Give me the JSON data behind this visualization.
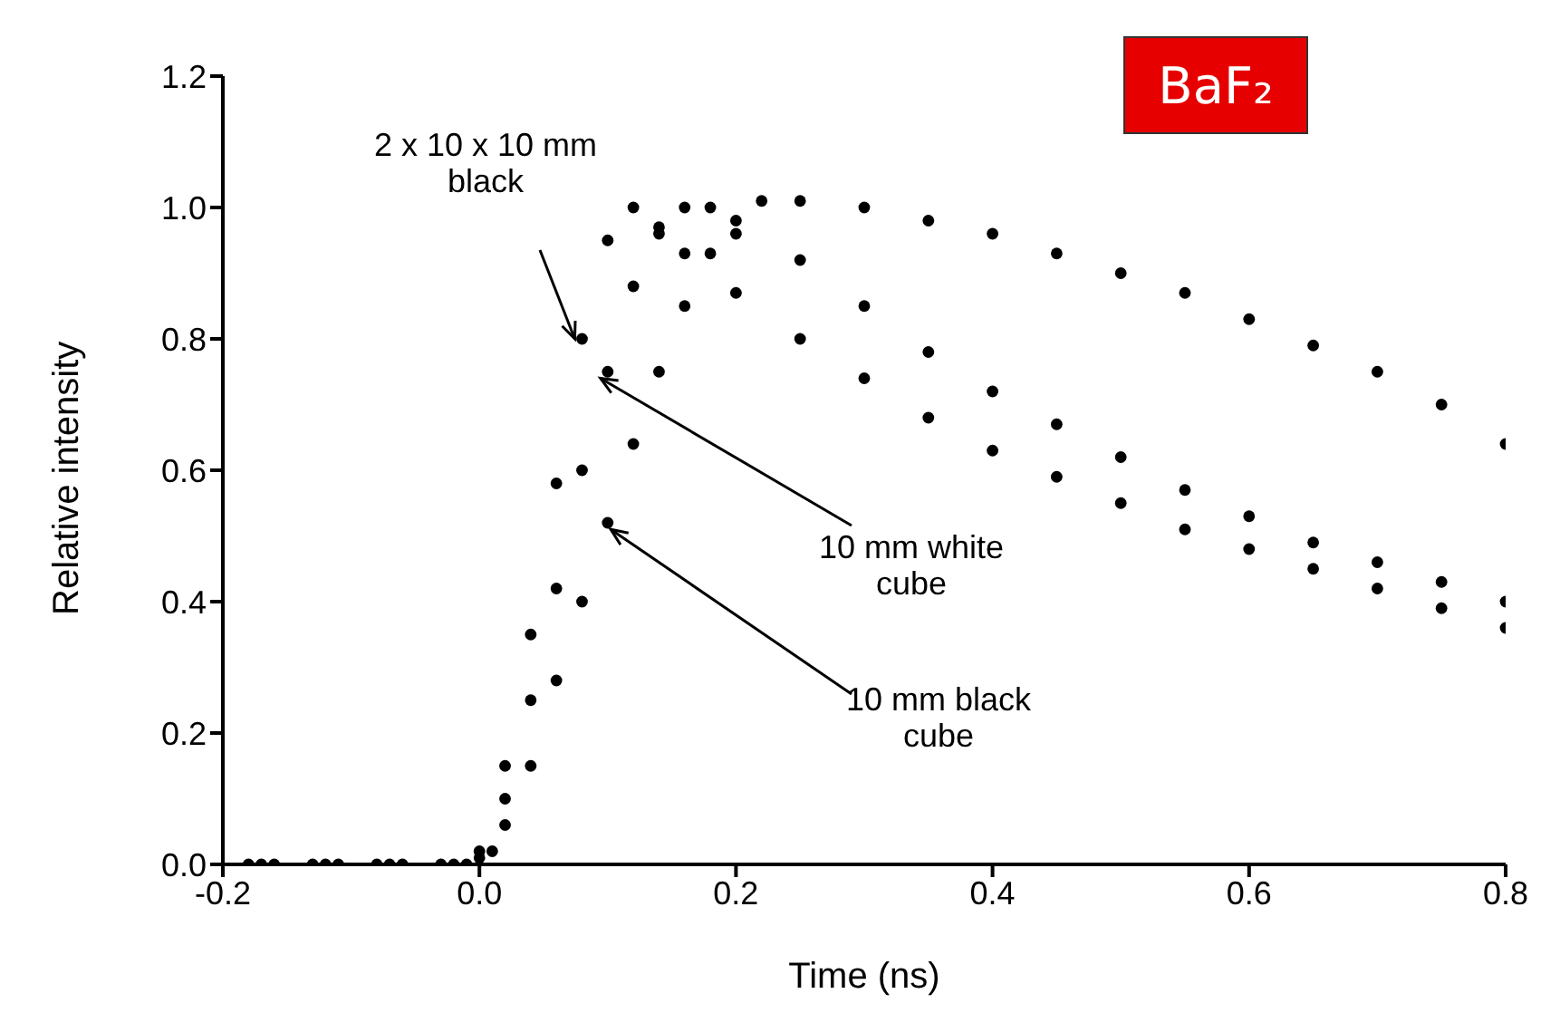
{
  "chart_data": {
    "type": "scatter",
    "title": "BaF₂",
    "xlabel": "Time (ns)",
    "ylabel": "Relative intensity",
    "xlim": [
      -0.2,
      0.8
    ],
    "ylim": [
      0,
      1.2
    ],
    "xticks": [
      -0.2,
      {
        "value": 0,
        "label": "0.0"
      },
      0.2,
      0.4,
      0.6,
      0.8
    ],
    "yticks": [
      {
        "value": 0,
        "label": "0.0"
      },
      0.2,
      0.4,
      0.6,
      0.8,
      {
        "value": 1,
        "label": "1.0"
      },
      1.2
    ],
    "marker": "circle",
    "series": [
      {
        "name": "2 x 10 x 10 mm black",
        "color": "#000000",
        "x": [
          -0.18,
          -0.13,
          -0.08,
          -0.03,
          0,
          0.02,
          0.04,
          0.06,
          0.08,
          0.1,
          0.12,
          0.14,
          0.16,
          0.2,
          0.25,
          0.3,
          0.35,
          0.4,
          0.45,
          0.5,
          0.55,
          0.6,
          0.65,
          0.7,
          0.75,
          0.8
        ],
        "values": [
          0,
          0,
          0,
          0,
          0.02,
          0.15,
          0.35,
          0.58,
          0.8,
          0.95,
          1.0,
          0.97,
          0.93,
          0.87,
          0.8,
          0.74,
          0.68,
          0.63,
          0.59,
          0.55,
          0.51,
          0.48,
          0.45,
          0.42,
          0.39,
          0.36
        ]
      },
      {
        "name": "10 mm white cube",
        "color": "#000000",
        "x": [
          -0.17,
          -0.12,
          -0.07,
          -0.02,
          0.01,
          0.02,
          0.04,
          0.06,
          0.08,
          0.1,
          0.12,
          0.14,
          0.16,
          0.18,
          0.2,
          0.25,
          0.3,
          0.35,
          0.4,
          0.45,
          0.5,
          0.55,
          0.6,
          0.65,
          0.7,
          0.75,
          0.8
        ],
        "values": [
          0,
          0,
          0,
          0,
          0.02,
          0.1,
          0.25,
          0.42,
          0.6,
          0.75,
          0.88,
          0.96,
          1.0,
          1.0,
          0.98,
          0.92,
          0.85,
          0.78,
          0.72,
          0.67,
          0.62,
          0.57,
          0.53,
          0.49,
          0.46,
          0.43,
          0.4
        ]
      },
      {
        "name": "10 mm black cube",
        "color": "#000000",
        "x": [
          -0.16,
          -0.11,
          -0.06,
          -0.01,
          0,
          0.02,
          0.04,
          0.06,
          0.08,
          0.1,
          0.12,
          0.14,
          0.16,
          0.18,
          0.2,
          0.22,
          0.25,
          0.3,
          0.35,
          0.4,
          0.45,
          0.5,
          0.55,
          0.6,
          0.65,
          0.7,
          0.75,
          0.8
        ],
        "values": [
          0,
          0,
          0,
          0,
          0.01,
          0.06,
          0.15,
          0.28,
          0.4,
          0.52,
          0.64,
          0.75,
          0.85,
          0.93,
          0.96,
          1.01,
          1.01,
          1.0,
          0.98,
          0.96,
          0.93,
          0.9,
          0.87,
          0.83,
          0.79,
          0.75,
          0.7,
          0.64
        ]
      }
    ]
  }
}
